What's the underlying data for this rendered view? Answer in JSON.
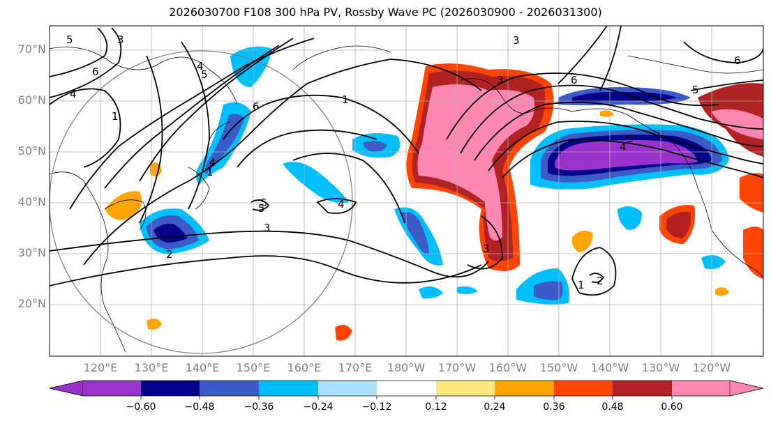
{
  "title": "2026030700 F108 300 hPa PV, Rossby Wave PC (2026030900 - 2026031300)",
  "lat_labels": [
    "70°N",
    "60°N",
    "50°N",
    "40°N",
    "30°N",
    "20°N"
  ],
  "lon_labels": [
    "120°E",
    "130°E",
    "140°E",
    "150°E",
    "160°E",
    "170°E",
    "180°W",
    "170°W",
    "160°W",
    "150°W",
    "140°W",
    "130°W",
    "120°W"
  ],
  "colorbar": {
    "ticks": [
      "−0.60",
      "−0.48",
      "−0.36",
      "−0.24",
      "−0.12",
      "0.12",
      "0.24",
      "0.36",
      "0.48",
      "0.60"
    ],
    "colors": [
      "#9932CC",
      "#00008B",
      "#3A5BC8",
      "#00BFFF",
      "#ADDFFF",
      "#FFFFFF",
      "#FFE97F",
      "#FFA500",
      "#FF4500",
      "#B22222",
      "#FF88B2"
    ]
  },
  "contour_labels": [
    "5",
    "3",
    "6",
    "4",
    "1",
    "5",
    "4",
    "6",
    "1",
    "5",
    "1",
    "4",
    "4",
    "5",
    "3",
    "2",
    "3",
    "3",
    "6",
    "5",
    "4",
    "5",
    "1",
    "2",
    "6",
    "3"
  ]
}
